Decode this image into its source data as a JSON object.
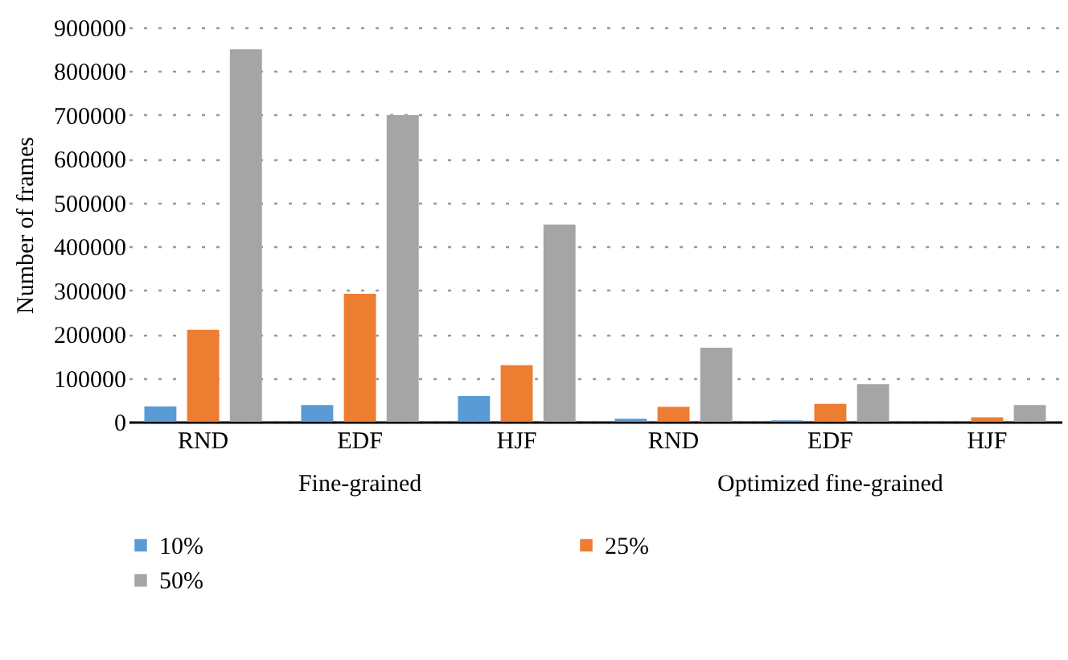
{
  "chart_data": {
    "type": "bar",
    "ylabel": "Number of frames",
    "categories": [
      "RND",
      "EDF",
      "HJF",
      "RND",
      "EDF",
      "HJF"
    ],
    "series": [
      {
        "name": "10%",
        "color": "#5b9bd5",
        "values": [
          35000,
          38000,
          59000,
          7000,
          3000,
          0
        ]
      },
      {
        "name": "25%",
        "color": "#ed7d31",
        "values": [
          210000,
          292000,
          129000,
          34000,
          41000,
          10000
        ]
      },
      {
        "name": "50%",
        "color": "#a5a5a5",
        "values": [
          850000,
          700000,
          450000,
          169000,
          86000,
          38000
        ]
      }
    ],
    "ylim": [
      0,
      900000
    ],
    "yticks": [
      0,
      100000,
      200000,
      300000,
      400000,
      500000,
      600000,
      700000,
      800000,
      900000
    ],
    "grid": "y",
    "legend": "bottom",
    "annotations": [
      "Fine-grained",
      "Optimized fine-grained"
    ]
  }
}
